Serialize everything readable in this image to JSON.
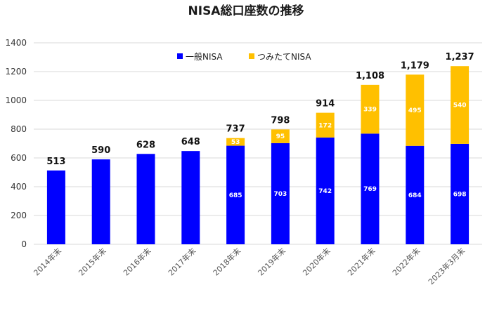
{
  "chart_data": {
    "type": "bar",
    "stacked": true,
    "title": "NISA総口座数の推移",
    "categories": [
      "2014年末",
      "2015年末",
      "2016年末",
      "2017年末",
      "2018年末",
      "2019年末",
      "2020年末",
      "2021年末",
      "2022年末",
      "2023年3月末"
    ],
    "series": [
      {
        "name": "一般NISA",
        "color": "#0000ff",
        "values": [
          513,
          590,
          628,
          648,
          685,
          703,
          742,
          769,
          684,
          698
        ],
        "labels": [
          "",
          "",
          "",
          "",
          "685",
          "703",
          "742",
          "769",
          "684",
          "698"
        ]
      },
      {
        "name": "つみたてNISA",
        "color": "#ffc000",
        "values": [
          0,
          0,
          0,
          0,
          53,
          95,
          172,
          339,
          495,
          540
        ],
        "labels": [
          "",
          "",
          "",
          "",
          "53",
          "95",
          "172",
          "339",
          "495",
          "540"
        ]
      }
    ],
    "totals": [
      "513",
      "590",
      "628",
      "648",
      "737",
      "798",
      "914",
      "1,108",
      "1,179",
      "1,237"
    ],
    "highlight_total_index": 9,
    "highlight_color": "#ff0000",
    "ylim": [
      0,
      1400
    ],
    "yticks": [
      "0",
      "200",
      "400",
      "600",
      "800",
      "1000",
      "1200",
      "1400"
    ],
    "ytick_values": [
      0,
      200,
      400,
      600,
      800,
      1000,
      1200,
      1400
    ],
    "grid": true,
    "legend_position": "top-center"
  }
}
